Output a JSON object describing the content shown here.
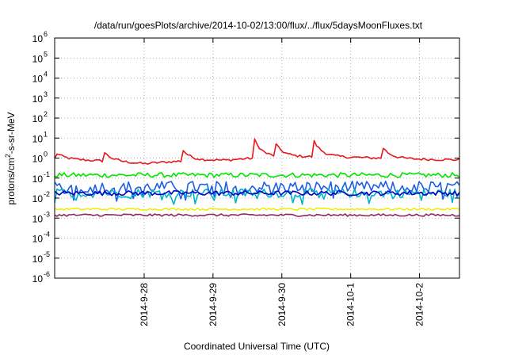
{
  "chart_data": {
    "type": "line",
    "title": "/data/run/goesPlots/archive/2014-10-02/13:00/flux/../flux/5daysMoonFluxes.txt",
    "xlabel": "Coordinated Universal Time (UTC)",
    "ylabel": {
      "prefix": "protons/cm",
      "sup": "2",
      "suffix": "-s-sr-MeV"
    },
    "y_scale": "log",
    "ylim_exp": [
      -6,
      6
    ],
    "y_ticks": [
      {
        "exp": -6,
        "label": "10",
        "sup": "-6"
      },
      {
        "exp": -5,
        "label": "10",
        "sup": "-5"
      },
      {
        "exp": -4,
        "label": "10",
        "sup": "-4"
      },
      {
        "exp": -3,
        "label": "10",
        "sup": "-3"
      },
      {
        "exp": -2,
        "label": "10",
        "sup": "-2"
      },
      {
        "exp": -1,
        "label": "10",
        "sup": "-1"
      },
      {
        "exp": 0,
        "label": "10",
        "sup": "0"
      },
      {
        "exp": 1,
        "label": "10",
        "sup": "1"
      },
      {
        "exp": 2,
        "label": "10",
        "sup": "2"
      },
      {
        "exp": 3,
        "label": "10",
        "sup": "3"
      },
      {
        "exp": 4,
        "label": "10",
        "sup": "4"
      },
      {
        "exp": 5,
        "label": "10",
        "sup": "5"
      },
      {
        "exp": 6,
        "label": "10",
        "sup": "6"
      }
    ],
    "xlim_days": [
      26.7,
      32.58
    ],
    "x_ticks": [
      {
        "day": 28,
        "label": "2014-9-28"
      },
      {
        "day": 29,
        "label": "2014-9-29"
      },
      {
        "day": 30,
        "label": "2014-9-30"
      },
      {
        "day": 31,
        "label": "2014-10-1"
      },
      {
        "day": 32,
        "label": "2014-10-2"
      }
    ],
    "grid": true,
    "series": [
      {
        "color": "#e8181b",
        "base": 0.0,
        "noise": 0.06,
        "spikes": [
          [
            26.72,
            0.3
          ],
          [
            27.4,
            0.52
          ],
          [
            28.55,
            0.62
          ],
          [
            29.6,
            0.95
          ],
          [
            29.9,
            0.65
          ],
          [
            30.45,
            0.9
          ],
          [
            31.45,
            0.62
          ]
        ]
      },
      {
        "color": "#00e400",
        "base": -0.85,
        "noise": 0.12,
        "spikes": []
      },
      {
        "color": "#1e5fe4",
        "base": -1.45,
        "noise": 0.3,
        "spikes": []
      },
      {
        "color": "#00b4c8",
        "base": -1.75,
        "noise": 0.22,
        "spikes": []
      },
      {
        "color": "#0000c8",
        "base": -1.75,
        "noise": 0.12,
        "spikes": []
      },
      {
        "color": "#f0f000",
        "base": -2.55,
        "noise": 0.05,
        "spikes": []
      },
      {
        "color": "#8c2860",
        "base": -2.85,
        "noise": 0.06,
        "spikes": []
      }
    ]
  }
}
